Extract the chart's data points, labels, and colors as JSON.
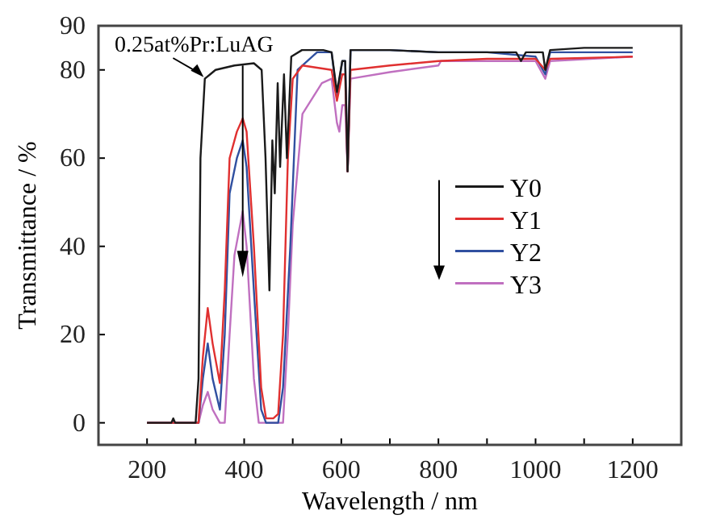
{
  "chart_data": {
    "type": "line",
    "xlabel": "Wavelength / nm",
    "ylabel": "Transmittance / %",
    "xlim": [
      100,
      1300
    ],
    "ylim": [
      -5,
      90
    ],
    "xticks": [
      200,
      {
        "value": 300,
        "label": null
      },
      400,
      {
        "value": 500,
        "label": null
      },
      600,
      {
        "value": 700,
        "label": null
      },
      800,
      {
        "value": 900,
        "label": null
      },
      1000,
      {
        "value": 1100,
        "label": null
      },
      1200
    ],
    "yticks": [
      0,
      20,
      40,
      60,
      80,
      90
    ],
    "grid": false,
    "legend": "right",
    "marker": "none",
    "line_style": "solid",
    "annotations": [
      {
        "text": "0.25at%Pr:LuAG",
        "x": 320,
        "y": 78
      }
    ],
    "series": [
      {
        "name": "Y0",
        "color": "#1a1a1a",
        "x": [
          200,
          250,
          254,
          258,
          300,
          306,
          310,
          319,
          330,
          341,
          380,
          420,
          436,
          444,
          452,
          458,
          463,
          469,
          474,
          482,
          488,
          497,
          519,
          563,
          580,
          591,
          602,
          608,
          613,
          619,
          700,
          800,
          900,
          960,
          970,
          980,
          1000,
          1015,
          1020,
          1030,
          1100,
          1200
        ],
        "values": [
          0,
          0,
          1,
          0,
          0,
          10,
          60,
          78,
          79,
          80,
          81,
          81.5,
          80,
          60,
          30,
          64,
          52,
          77,
          58,
          79,
          60,
          83,
          84.5,
          84.5,
          84,
          75,
          82,
          82,
          57,
          84.5,
          84.5,
          84,
          84,
          84,
          82,
          84,
          84,
          84,
          80,
          84.5,
          85,
          85
        ]
      },
      {
        "name": "Y1",
        "color": "#e03030",
        "x": [
          200,
          300,
          306,
          315,
          325,
          335,
          350,
          360,
          370,
          385,
          397,
          405,
          420,
          435,
          445,
          460,
          470,
          480,
          490,
          500,
          520,
          580,
          591,
          602,
          608,
          613,
          619,
          700,
          800,
          900,
          1000,
          1020,
          1030,
          1200
        ],
        "values": [
          0,
          0,
          0,
          15,
          26,
          18,
          9,
          30,
          60,
          66,
          69,
          66,
          40,
          8,
          1,
          1,
          2,
          20,
          60,
          78,
          81,
          80,
          73,
          79,
          79,
          57,
          80,
          81,
          82,
          82.5,
          82.5,
          80,
          82.5,
          83
        ]
      },
      {
        "name": "Y2",
        "color": "#3050a0",
        "x": [
          200,
          300,
          306,
          315,
          325,
          335,
          350,
          360,
          370,
          385,
          397,
          405,
          420,
          435,
          445,
          460,
          470,
          480,
          495,
          510,
          550,
          580,
          591,
          602,
          608,
          613,
          619,
          700,
          800,
          900,
          1000,
          1020,
          1030,
          1200
        ],
        "values": [
          0,
          0,
          0,
          10,
          18,
          10,
          3,
          20,
          52,
          60,
          64,
          58,
          30,
          3,
          0,
          0,
          0,
          8,
          40,
          80,
          84,
          84,
          74,
          82,
          82,
          57,
          84.5,
          84.5,
          84,
          84,
          83,
          79,
          84,
          84
        ]
      },
      {
        "name": "Y3",
        "color": "#c070c0",
        "x": [
          200,
          300,
          306,
          315,
          325,
          335,
          350,
          360,
          370,
          380,
          397,
          405,
          420,
          430,
          480,
          490,
          500,
          520,
          560,
          580,
          591,
          596,
          602,
          608,
          613,
          619,
          700,
          800,
          805,
          900,
          1000,
          1020,
          1030,
          1200
        ],
        "values": [
          0,
          0,
          0,
          4,
          7,
          3,
          0,
          0,
          20,
          38,
          48,
          40,
          10,
          0,
          0,
          20,
          45,
          70,
          77,
          78,
          68,
          66,
          72,
          72,
          57,
          78,
          79.5,
          81,
          82,
          82,
          82,
          78,
          82,
          83
        ]
      }
    ]
  }
}
